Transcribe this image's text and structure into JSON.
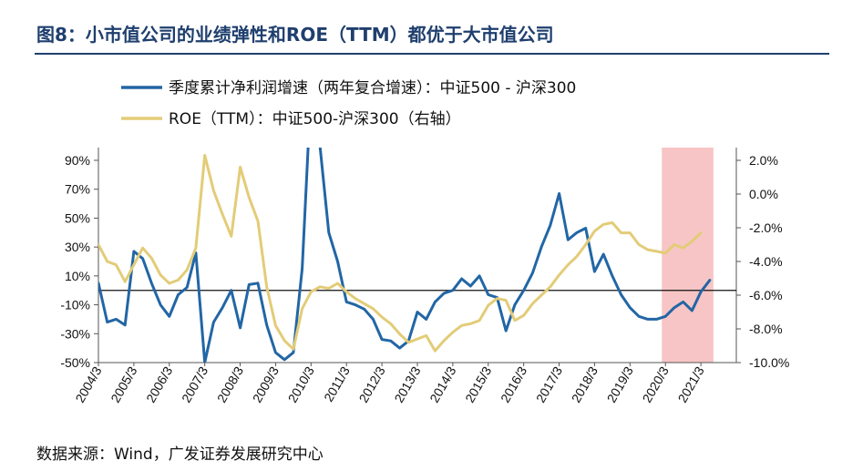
{
  "title": "图8：小市值公司的业绩弹性和ROE（TTM）都优于大市值公司",
  "source": "数据来源：Wind，广发证券发展研究中心",
  "colors": {
    "growth": "#2266a5",
    "roe": "#e3cc78",
    "shade": "#f7c5c5",
    "title": "#1f3f6e"
  },
  "chart_data": {
    "type": "line",
    "title": "图8：小市值公司的业绩弹性和ROE（TTM）都优于大市值公司",
    "legend_position": "top",
    "x_labels": [
      "2004/3",
      "2005/3",
      "2006/3",
      "2007/3",
      "2008/3",
      "2009/3",
      "2010/3",
      "2011/3",
      "2012/3",
      "2013/3",
      "2014/3",
      "2015/3",
      "2016/3",
      "2017/3",
      "2018/3",
      "2019/3",
      "2020/3",
      "2021/3"
    ],
    "x_start": 2004,
    "y_left": {
      "ticks": [
        "90%",
        "70%",
        "50%",
        "30%",
        "10%",
        "-10%",
        "-30%",
        "-50%"
      ],
      "min": -50,
      "max": 90
    },
    "y_right": {
      "ticks": [
        "2.0%",
        "0.0%",
        "-2.0%",
        "-4.0%",
        "-6.0%",
        "-8.0%",
        "-10.0%"
      ],
      "min": -10,
      "max": 2
    },
    "shaded_region": {
      "from": "2020/3",
      "to": "2021/6"
    },
    "series": [
      {
        "name": "季度累计净利润增速（两年复合增速）：中证500 - 沪深300",
        "axis": "left",
        "values": [
          [
            2004.0,
            5
          ],
          [
            2004.25,
            -22
          ],
          [
            2004.5,
            -20
          ],
          [
            2004.75,
            -24
          ],
          [
            2005.0,
            27
          ],
          [
            2005.25,
            22
          ],
          [
            2005.5,
            5
          ],
          [
            2005.75,
            -10
          ],
          [
            2006.0,
            -18
          ],
          [
            2006.25,
            -3
          ],
          [
            2006.5,
            2
          ],
          [
            2006.75,
            26
          ],
          [
            2007.0,
            -50
          ],
          [
            2007.25,
            -22
          ],
          [
            2007.5,
            -12
          ],
          [
            2007.75,
            0
          ],
          [
            2008.0,
            -26
          ],
          [
            2008.25,
            4
          ],
          [
            2008.5,
            5
          ],
          [
            2008.75,
            -24
          ],
          [
            2009.0,
            -43
          ],
          [
            2009.25,
            -48
          ],
          [
            2009.5,
            -43
          ],
          [
            2009.75,
            15
          ],
          [
            2010.0,
            140
          ],
          [
            2010.25,
            100
          ],
          [
            2010.5,
            40
          ],
          [
            2010.75,
            20
          ],
          [
            2011.0,
            -8
          ],
          [
            2011.25,
            -10
          ],
          [
            2011.5,
            -13
          ],
          [
            2011.75,
            -20
          ],
          [
            2012.0,
            -34
          ],
          [
            2012.25,
            -35
          ],
          [
            2012.5,
            -40
          ],
          [
            2012.75,
            -35
          ],
          [
            2013.0,
            -15
          ],
          [
            2013.25,
            -20
          ],
          [
            2013.5,
            -8
          ],
          [
            2013.75,
            -2
          ],
          [
            2014.0,
            0
          ],
          [
            2014.25,
            8
          ],
          [
            2014.5,
            3
          ],
          [
            2014.75,
            10
          ],
          [
            2015.0,
            -3
          ],
          [
            2015.25,
            -5
          ],
          [
            2015.5,
            -28
          ],
          [
            2015.75,
            -10
          ],
          [
            2016.0,
            0
          ],
          [
            2016.25,
            12
          ],
          [
            2016.5,
            30
          ],
          [
            2016.75,
            45
          ],
          [
            2017.0,
            67
          ],
          [
            2017.25,
            35
          ],
          [
            2017.5,
            40
          ],
          [
            2017.75,
            43
          ],
          [
            2018.0,
            13
          ],
          [
            2018.25,
            25
          ],
          [
            2018.5,
            10
          ],
          [
            2018.75,
            -3
          ],
          [
            2019.0,
            -12
          ],
          [
            2019.25,
            -18
          ],
          [
            2019.5,
            -20
          ],
          [
            2019.75,
            -20
          ],
          [
            2020.0,
            -18
          ],
          [
            2020.25,
            -12
          ],
          [
            2020.5,
            -8
          ],
          [
            2020.75,
            -14
          ],
          [
            2021.0,
            -1
          ],
          [
            2021.25,
            7
          ]
        ]
      },
      {
        "name": "ROE（TTM）：中证500-沪深300（右轴）",
        "axis": "right",
        "values": [
          [
            2004.0,
            -3.0
          ],
          [
            2004.25,
            -4.0
          ],
          [
            2004.5,
            -4.2
          ],
          [
            2004.75,
            -5.2
          ],
          [
            2005.0,
            -4.2
          ],
          [
            2005.25,
            -3.2
          ],
          [
            2005.5,
            -3.8
          ],
          [
            2005.75,
            -4.8
          ],
          [
            2006.0,
            -5.3
          ],
          [
            2006.25,
            -5.1
          ],
          [
            2006.5,
            -4.5
          ],
          [
            2006.75,
            -3.2
          ],
          [
            2007.0,
            2.3
          ],
          [
            2007.25,
            0.2
          ],
          [
            2007.5,
            -1.2
          ],
          [
            2007.75,
            -2.5
          ],
          [
            2008.0,
            1.6
          ],
          [
            2008.25,
            -0.2
          ],
          [
            2008.5,
            -1.6
          ],
          [
            2008.75,
            -5.5
          ],
          [
            2009.0,
            -7.8
          ],
          [
            2009.25,
            -8.7
          ],
          [
            2009.5,
            -9.2
          ],
          [
            2009.75,
            -6.8
          ],
          [
            2010.0,
            -5.8
          ],
          [
            2010.25,
            -5.5
          ],
          [
            2010.5,
            -5.6
          ],
          [
            2010.75,
            -5.3
          ],
          [
            2011.0,
            -5.8
          ],
          [
            2011.25,
            -6.2
          ],
          [
            2011.5,
            -6.5
          ],
          [
            2011.75,
            -6.8
          ],
          [
            2012.0,
            -7.3
          ],
          [
            2012.25,
            -7.7
          ],
          [
            2012.5,
            -8.3
          ],
          [
            2012.75,
            -8.8
          ],
          [
            2013.0,
            -8.6
          ],
          [
            2013.25,
            -8.4
          ],
          [
            2013.5,
            -9.3
          ],
          [
            2013.75,
            -8.7
          ],
          [
            2014.0,
            -8.2
          ],
          [
            2014.25,
            -7.8
          ],
          [
            2014.5,
            -7.7
          ],
          [
            2014.75,
            -7.5
          ],
          [
            2015.0,
            -6.6
          ],
          [
            2015.25,
            -6.2
          ],
          [
            2015.5,
            -6.3
          ],
          [
            2015.75,
            -7.5
          ],
          [
            2016.0,
            -7.2
          ],
          [
            2016.25,
            -6.5
          ],
          [
            2016.5,
            -6.0
          ],
          [
            2016.75,
            -5.5
          ],
          [
            2017.0,
            -4.8
          ],
          [
            2017.25,
            -4.2
          ],
          [
            2017.5,
            -3.7
          ],
          [
            2017.75,
            -3.0
          ],
          [
            2018.0,
            -2.2
          ],
          [
            2018.25,
            -1.8
          ],
          [
            2018.5,
            -1.7
          ],
          [
            2018.75,
            -2.3
          ],
          [
            2019.0,
            -2.3
          ],
          [
            2019.25,
            -3.0
          ],
          [
            2019.5,
            -3.3
          ],
          [
            2019.75,
            -3.4
          ],
          [
            2020.0,
            -3.5
          ],
          [
            2020.25,
            -3.0
          ],
          [
            2020.5,
            -3.2
          ],
          [
            2020.75,
            -2.8
          ],
          [
            2021.0,
            -2.3
          ]
        ]
      }
    ]
  }
}
